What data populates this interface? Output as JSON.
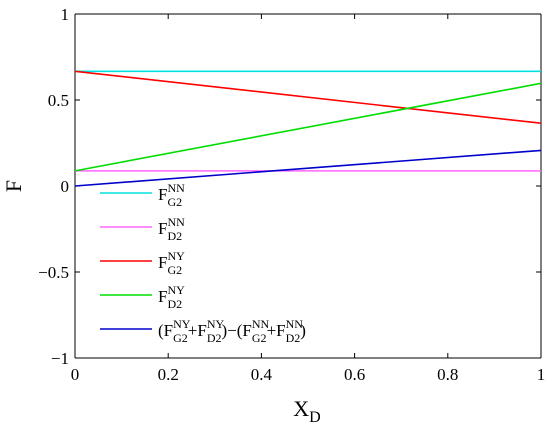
{
  "chart_data": {
    "type": "line",
    "xlabel": {
      "main": "X",
      "sub": "D"
    },
    "ylabel": "F",
    "xlim": [
      0,
      1
    ],
    "ylim": [
      -1,
      1
    ],
    "xticks": [
      0,
      0.2,
      0.4,
      0.6,
      0.8,
      1
    ],
    "xtick_labels": [
      "0",
      "0.2",
      "0.4",
      "0.6",
      "0.8",
      "1"
    ],
    "yticks": [
      -1,
      -0.5,
      0,
      0.5,
      1
    ],
    "ytick_labels": [
      "−1",
      "−0.5",
      "0",
      "0.5",
      "1"
    ],
    "grid": false,
    "legend_position": "lower-left",
    "series": [
      {
        "key": "g2nn",
        "color": "#00e0e0",
        "x": [
          0,
          1
        ],
        "y": [
          0.667,
          0.667
        ],
        "legend": [
          [
            "F",
            ""
          ],
          [
            "NN",
            "sup"
          ],
          [
            "G2",
            "sub"
          ]
        ]
      },
      {
        "key": "d2nn",
        "color": "#ff66ff",
        "x": [
          0,
          1
        ],
        "y": [
          0.088,
          0.088
        ],
        "legend": [
          [
            "F",
            ""
          ],
          [
            "NN",
            "sup"
          ],
          [
            "D2",
            "sub"
          ]
        ]
      },
      {
        "key": "g2ny",
        "color": "#ff0000",
        "x": [
          0,
          1
        ],
        "y": [
          0.667,
          0.365
        ],
        "legend": [
          [
            "F",
            ""
          ],
          [
            "NY",
            "sup"
          ],
          [
            "G2",
            "sub"
          ]
        ]
      },
      {
        "key": "d2ny",
        "color": "#00dd00",
        "x": [
          0,
          1
        ],
        "y": [
          0.088,
          0.597
        ],
        "legend": [
          [
            "F",
            ""
          ],
          [
            "NY",
            "sup"
          ],
          [
            "D2",
            "sub"
          ]
        ]
      },
      {
        "key": "diff",
        "color": "#0000cc",
        "x": [
          0,
          1
        ],
        "y": [
          0.0,
          0.207
        ],
        "legend": [
          [
            "(F",
            ""
          ],
          [
            "NY",
            "sup"
          ],
          [
            "G2",
            "sub"
          ],
          [
            "+F",
            ""
          ],
          [
            "NY",
            "sup"
          ],
          [
            "D2",
            "sub"
          ],
          [
            ")−(F",
            ""
          ],
          [
            "NN",
            "sup"
          ],
          [
            "G2",
            "sub"
          ],
          [
            "+F",
            ""
          ],
          [
            "NN",
            "sup"
          ],
          [
            "D2",
            "sub"
          ],
          [
            ")",
            ""
          ]
        ]
      }
    ]
  }
}
